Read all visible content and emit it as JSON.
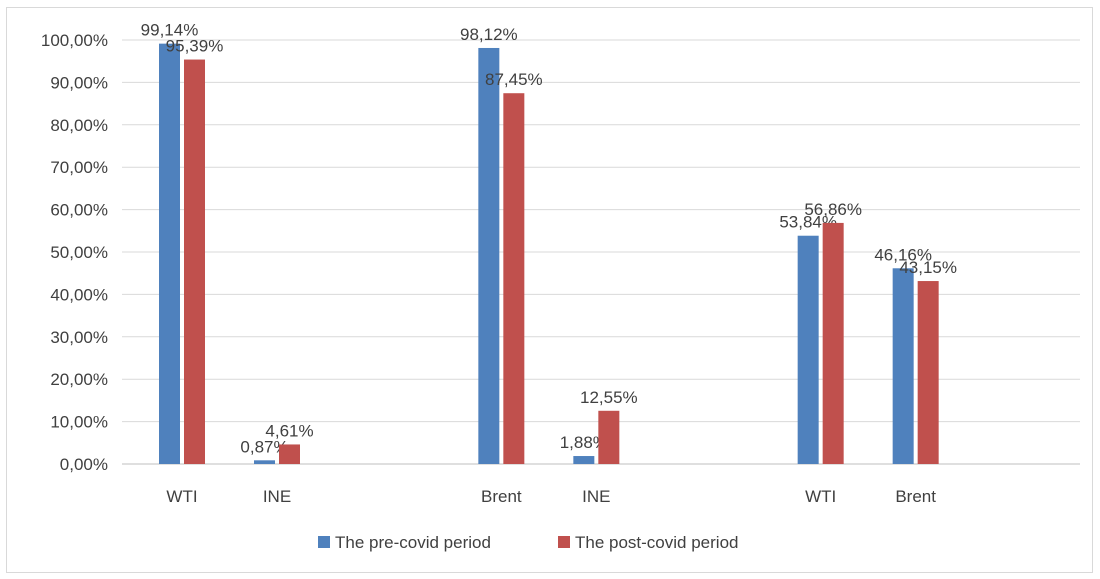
{
  "chart_data": {
    "type": "bar",
    "title": "",
    "xlabel": "",
    "ylabel": "",
    "ylim": [
      0,
      100
    ],
    "ytick_labels": [
      "0,00%",
      "10,00%",
      "20,00%",
      "30,00%",
      "40,00%",
      "50,00%",
      "60,00%",
      "70,00%",
      "80,00%",
      "90,00%",
      "100,00%"
    ],
    "grid": true,
    "legend_position": "bottom",
    "groups": [
      {
        "categories": [
          "WTI",
          "INE"
        ]
      },
      {
        "categories": [
          "Brent",
          "INE"
        ]
      },
      {
        "categories": [
          "WTI",
          "Brent"
        ]
      }
    ],
    "categories": [
      "WTI",
      "INE",
      "Brent",
      "INE",
      "WTI",
      "Brent"
    ],
    "series": [
      {
        "name": "The pre-covid period",
        "color": "#4f81bd",
        "values": [
          99.14,
          0.87,
          98.12,
          1.88,
          53.84,
          46.16
        ],
        "labels": [
          "99,14%",
          "0,87%",
          "98,12%",
          "1,88%",
          "53,84%",
          "46,16%"
        ]
      },
      {
        "name": "The post-covid period",
        "color": "#c0504d",
        "values": [
          95.39,
          4.61,
          87.45,
          12.55,
          56.86,
          43.15
        ],
        "labels": [
          "95,39%",
          "4,61%",
          "87,45%",
          "12,55%",
          "56,86%",
          "43,15%"
        ]
      }
    ]
  }
}
